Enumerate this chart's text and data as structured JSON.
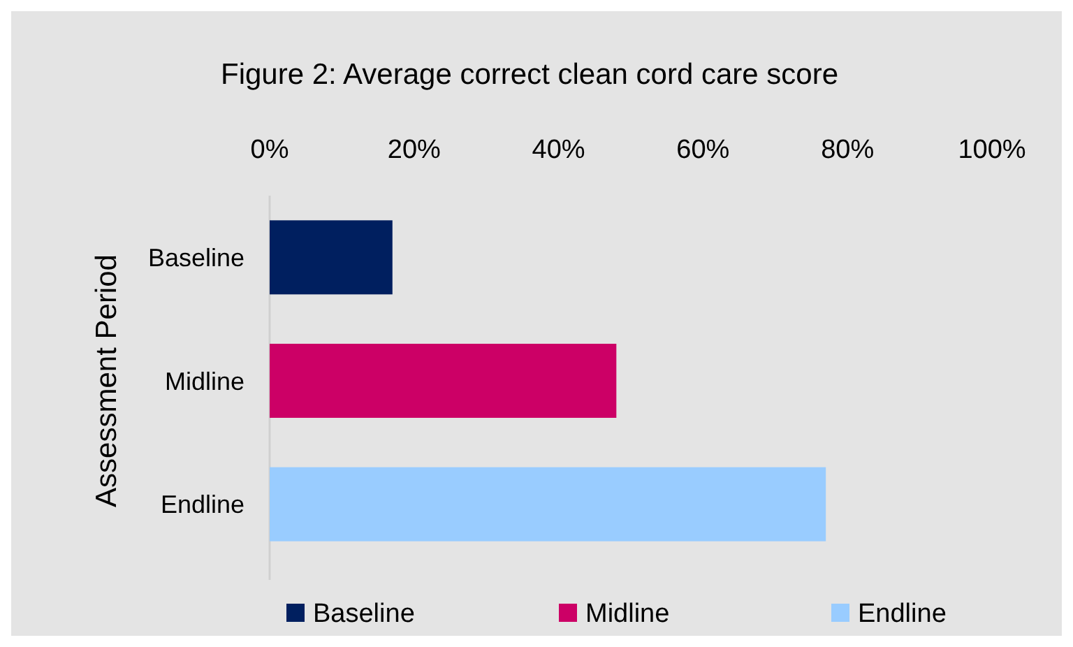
{
  "chart_data": {
    "type": "bar",
    "orientation": "horizontal",
    "stacked": true,
    "title": "Figure 2: Average correct clean cord care score",
    "ylabel": "Assessment Period",
    "categories": [
      "Baseline",
      "Midline",
      "Endline"
    ],
    "series": [
      {
        "name": "Baseline",
        "color": "#001f5f",
        "values": [
          17,
          null,
          null
        ]
      },
      {
        "name": "Midline",
        "color": "#cc0066",
        "values": [
          null,
          48,
          null
        ]
      },
      {
        "name": "Endline",
        "color": "#99ccff",
        "values": [
          null,
          null,
          77
        ]
      }
    ],
    "xlim": [
      0,
      100
    ],
    "xticks": [
      {
        "value": 0,
        "label": "0%"
      },
      {
        "value": 20,
        "label": "20%"
      },
      {
        "value": 40,
        "label": "40%"
      },
      {
        "value": 60,
        "label": "60%"
      },
      {
        "value": 80,
        "label": "80%"
      },
      {
        "value": 100,
        "label": "100%"
      }
    ],
    "grid": false,
    "legend": "bottom"
  }
}
